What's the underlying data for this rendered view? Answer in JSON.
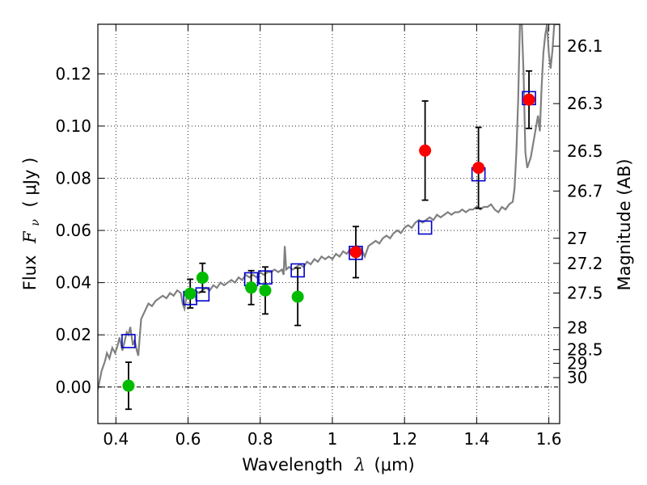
{
  "chart_data": {
    "type": "scatter",
    "xlabel": {
      "prefix": "Wavelength",
      "symbol": "λ",
      "unit": "(μm)"
    },
    "ylabel": {
      "prefix": "Flux",
      "symbol": "F",
      "subscript": "ν",
      "unit": "( μJy )"
    },
    "ylabel_right": "Magnitude (AB)",
    "xlim": [
      0.35,
      1.63
    ],
    "ylim": [
      -0.014,
      0.139
    ],
    "x_ticks": [
      0.4,
      0.6,
      0.8,
      1.0,
      1.2,
      1.4,
      1.6
    ],
    "x_tick_labels": [
      "0.4",
      "0.6",
      "0.8",
      "1",
      "1.2",
      "1.4",
      "1.6"
    ],
    "y_ticks": [
      0.0,
      0.02,
      0.04,
      0.06,
      0.08,
      0.1,
      0.12
    ],
    "y_tick_labels": [
      "0.00",
      "0.02",
      "0.04",
      "0.06",
      "0.08",
      "0.10",
      "0.12"
    ],
    "right_ticks": [
      {
        "label": "26.1",
        "flux": 0.1306
      },
      {
        "label": "26.3",
        "flux": 0.1086
      },
      {
        "label": "26.5",
        "flux": 0.0904
      },
      {
        "label": "26.7",
        "flux": 0.0751
      },
      {
        "label": "27",
        "flux": 0.057
      },
      {
        "label": "27.2",
        "flux": 0.0474
      },
      {
        "label": "27.5",
        "flux": 0.036
      },
      {
        "label": "28",
        "flux": 0.0227
      },
      {
        "label": "28.5",
        "flux": 0.0143
      },
      {
        "label": "29",
        "flux": 0.0091
      },
      {
        "label": "30",
        "flux": 0.0036
      }
    ],
    "grid": true,
    "zero_line": 0.0,
    "colors": {
      "green": "#00bb00",
      "red": "#ff0000",
      "model_square": "#0000cc",
      "sed_line": "#808080",
      "error_bar": "#000000"
    },
    "series": [
      {
        "marker": "circle",
        "color": "green",
        "points": [
          {
            "x": 0.435,
            "y": 0.0005,
            "err": 0.009
          },
          {
            "x": 0.606,
            "y": 0.0358,
            "err": 0.0055
          },
          {
            "x": 0.64,
            "y": 0.0419,
            "err": 0.0055
          },
          {
            "x": 0.775,
            "y": 0.0381,
            "err": 0.0065
          },
          {
            "x": 0.814,
            "y": 0.037,
            "err": 0.009
          },
          {
            "x": 0.904,
            "y": 0.0346,
            "err": 0.011
          }
        ]
      },
      {
        "marker": "circle",
        "color": "red",
        "points": [
          {
            "x": 1.065,
            "y": 0.0517,
            "err": 0.0098
          },
          {
            "x": 1.257,
            "y": 0.0906,
            "err": 0.019
          },
          {
            "x": 1.405,
            "y": 0.084,
            "err": 0.0155
          },
          {
            "x": 1.545,
            "y": 0.1101,
            "err": 0.011
          }
        ]
      },
      {
        "marker": "open-square",
        "color": "model_square",
        "points": [
          {
            "x": 0.435,
            "y": 0.0176
          },
          {
            "x": 0.606,
            "y": 0.0341
          },
          {
            "x": 0.64,
            "y": 0.0355
          },
          {
            "x": 0.775,
            "y": 0.0413
          },
          {
            "x": 0.814,
            "y": 0.042
          },
          {
            "x": 0.904,
            "y": 0.0447
          },
          {
            "x": 1.065,
            "y": 0.0514
          },
          {
            "x": 1.257,
            "y": 0.0611
          },
          {
            "x": 1.405,
            "y": 0.0815
          },
          {
            "x": 1.545,
            "y": 0.1107
          }
        ]
      },
      {
        "marker": "line",
        "color": "sed_line",
        "points": [
          [
            0.35,
            -0.001
          ],
          [
            0.36,
            0.006
          ],
          [
            0.37,
            0.01
          ],
          [
            0.375,
            0.013
          ],
          [
            0.382,
            0.011
          ],
          [
            0.39,
            0.015
          ],
          [
            0.398,
            0.013
          ],
          [
            0.405,
            0.016
          ],
          [
            0.41,
            0.019
          ],
          [
            0.418,
            0.014
          ],
          [
            0.425,
            0.018
          ],
          [
            0.43,
            0.021
          ],
          [
            0.435,
            0.02
          ],
          [
            0.44,
            0.023
          ],
          [
            0.447,
            0.016
          ],
          [
            0.452,
            0.018
          ],
          [
            0.458,
            0.014
          ],
          [
            0.462,
            0.012
          ],
          [
            0.47,
            0.026
          ],
          [
            0.48,
            0.029
          ],
          [
            0.49,
            0.032
          ],
          [
            0.5,
            0.031
          ],
          [
            0.51,
            0.033
          ],
          [
            0.52,
            0.034
          ],
          [
            0.53,
            0.035
          ],
          [
            0.54,
            0.034
          ],
          [
            0.55,
            0.036
          ],
          [
            0.56,
            0.035
          ],
          [
            0.57,
            0.037
          ],
          [
            0.58,
            0.036
          ],
          [
            0.585,
            0.032
          ],
          [
            0.59,
            0.03
          ],
          [
            0.595,
            0.034
          ],
          [
            0.6,
            0.035
          ],
          [
            0.61,
            0.036
          ],
          [
            0.62,
            0.037
          ],
          [
            0.63,
            0.036
          ],
          [
            0.64,
            0.037
          ],
          [
            0.65,
            0.038
          ],
          [
            0.66,
            0.037
          ],
          [
            0.67,
            0.039
          ],
          [
            0.68,
            0.038
          ],
          [
            0.69,
            0.04
          ],
          [
            0.7,
            0.039
          ],
          [
            0.71,
            0.04
          ],
          [
            0.72,
            0.041
          ],
          [
            0.73,
            0.04
          ],
          [
            0.74,
            0.042
          ],
          [
            0.75,
            0.041
          ],
          [
            0.76,
            0.043
          ],
          [
            0.77,
            0.042
          ],
          [
            0.78,
            0.043
          ],
          [
            0.79,
            0.042
          ],
          [
            0.8,
            0.044
          ],
          [
            0.81,
            0.043
          ],
          [
            0.82,
            0.044
          ],
          [
            0.83,
            0.044
          ],
          [
            0.84,
            0.045
          ],
          [
            0.85,
            0.044
          ],
          [
            0.86,
            0.045
          ],
          [
            0.865,
            0.043
          ],
          [
            0.868,
            0.054
          ],
          [
            0.872,
            0.045
          ],
          [
            0.88,
            0.046
          ],
          [
            0.89,
            0.045
          ],
          [
            0.9,
            0.046
          ],
          [
            0.91,
            0.047
          ],
          [
            0.92,
            0.046
          ],
          [
            0.93,
            0.048
          ],
          [
            0.94,
            0.047
          ],
          [
            0.95,
            0.049
          ],
          [
            0.96,
            0.048
          ],
          [
            0.97,
            0.05
          ],
          [
            0.98,
            0.049
          ],
          [
            0.99,
            0.05
          ],
          [
            1.0,
            0.049
          ],
          [
            1.01,
            0.051
          ],
          [
            1.02,
            0.05
          ],
          [
            1.03,
            0.052
          ],
          [
            1.04,
            0.051
          ],
          [
            1.05,
            0.053
          ],
          [
            1.06,
            0.052
          ],
          [
            1.07,
            0.054
          ],
          [
            1.08,
            0.053
          ],
          [
            1.09,
            0.05
          ],
          [
            1.1,
            0.054
          ],
          [
            1.11,
            0.055
          ],
          [
            1.12,
            0.056
          ],
          [
            1.13,
            0.055
          ],
          [
            1.14,
            0.057
          ],
          [
            1.15,
            0.058
          ],
          [
            1.16,
            0.057
          ],
          [
            1.17,
            0.059
          ],
          [
            1.18,
            0.06
          ],
          [
            1.19,
            0.059
          ],
          [
            1.2,
            0.061
          ],
          [
            1.21,
            0.062
          ],
          [
            1.22,
            0.061
          ],
          [
            1.23,
            0.063
          ],
          [
            1.24,
            0.064
          ],
          [
            1.25,
            0.063
          ],
          [
            1.26,
            0.064
          ],
          [
            1.27,
            0.065
          ],
          [
            1.28,
            0.064
          ],
          [
            1.29,
            0.066
          ],
          [
            1.3,
            0.065
          ],
          [
            1.31,
            0.066
          ],
          [
            1.32,
            0.067
          ],
          [
            1.33,
            0.066
          ],
          [
            1.34,
            0.067
          ],
          [
            1.35,
            0.067
          ],
          [
            1.36,
            0.068
          ],
          [
            1.37,
            0.067
          ],
          [
            1.38,
            0.068
          ],
          [
            1.39,
            0.068
          ],
          [
            1.4,
            0.069
          ],
          [
            1.41,
            0.068
          ],
          [
            1.42,
            0.069
          ],
          [
            1.43,
            0.069
          ],
          [
            1.44,
            0.07
          ],
          [
            1.45,
            0.068
          ],
          [
            1.46,
            0.067
          ],
          [
            1.47,
            0.069
          ],
          [
            1.48,
            0.068
          ],
          [
            1.49,
            0.07
          ],
          [
            1.5,
            0.071
          ],
          [
            1.505,
            0.076
          ],
          [
            1.51,
            0.09
          ],
          [
            1.515,
            0.11
          ],
          [
            1.52,
            0.14
          ],
          [
            1.525,
            0.139
          ],
          [
            1.53,
            0.12
          ],
          [
            1.535,
            0.09
          ],
          [
            1.54,
            0.084
          ],
          [
            1.55,
            0.088
          ],
          [
            1.56,
            0.096
          ],
          [
            1.57,
            0.104
          ],
          [
            1.575,
            0.098
          ],
          [
            1.58,
            0.115
          ],
          [
            1.585,
            0.128
          ],
          [
            1.59,
            0.135
          ],
          [
            1.595,
            0.139
          ],
          [
            1.6,
            0.128
          ],
          [
            1.605,
            0.122
          ],
          [
            1.61,
            0.129
          ],
          [
            1.615,
            0.139
          ],
          [
            1.62,
            0.139
          ],
          [
            1.63,
            0.139
          ]
        ]
      }
    ]
  }
}
